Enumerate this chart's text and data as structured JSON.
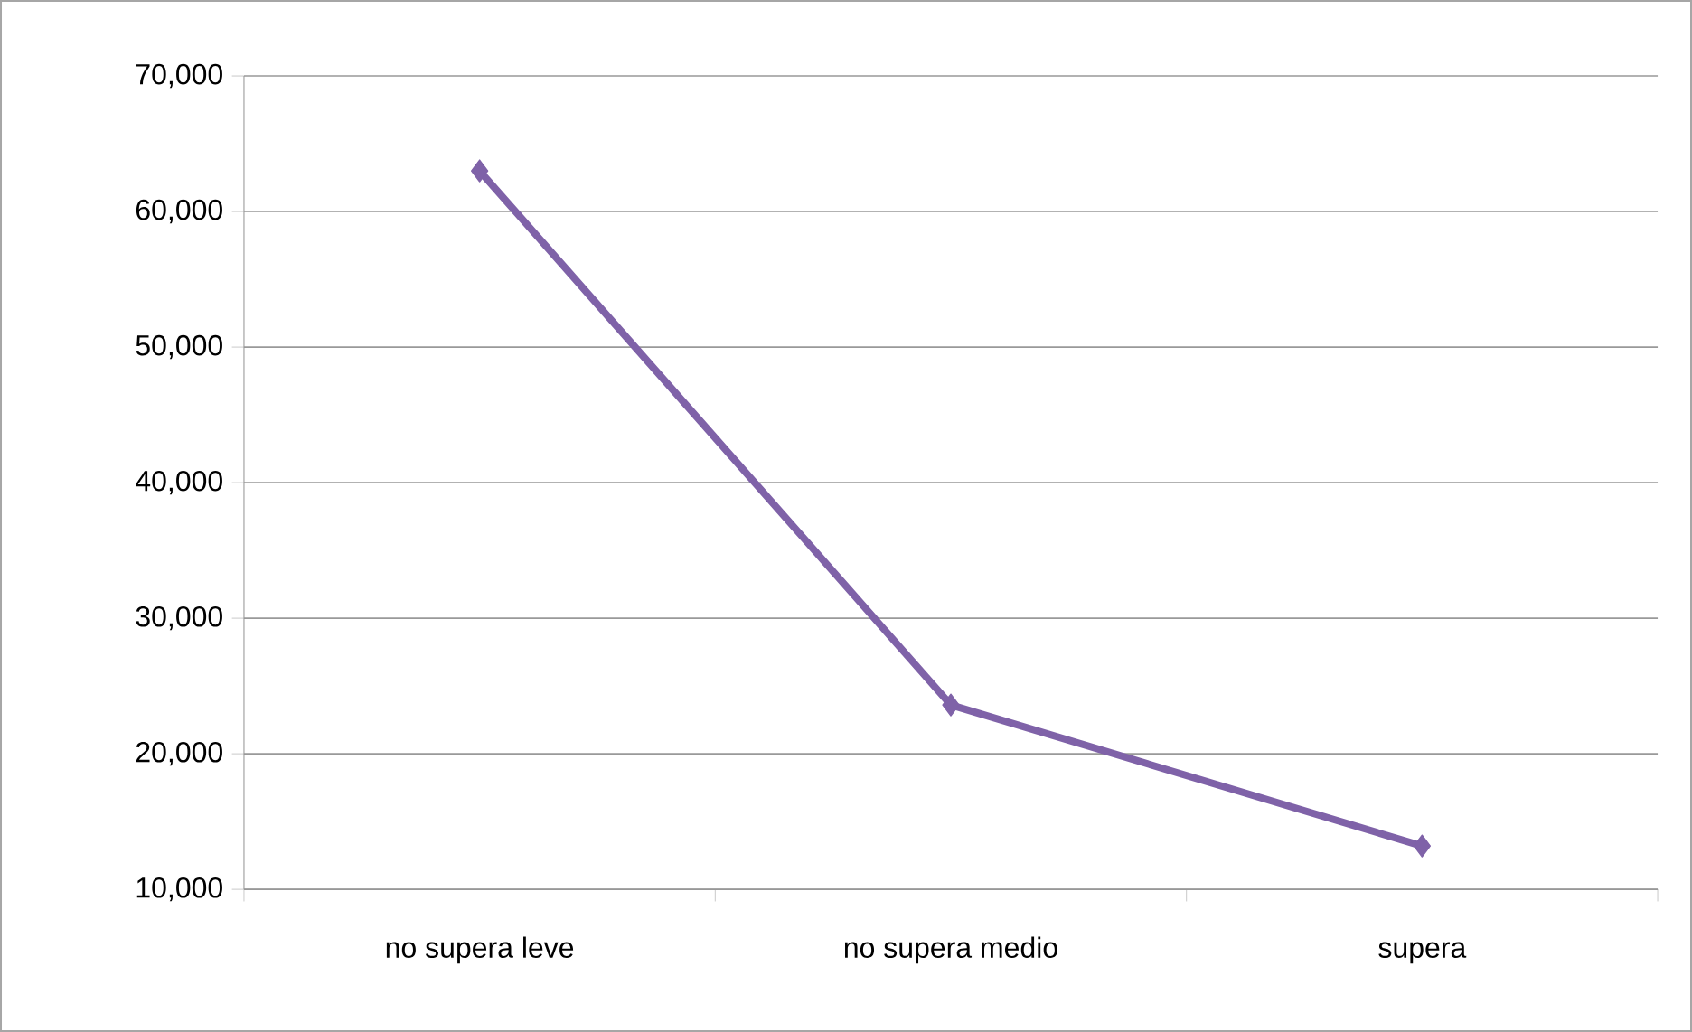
{
  "chart_data": {
    "type": "line",
    "categories": [
      "no supera leve",
      "no supera medio",
      "supera"
    ],
    "series": [
      {
        "color": "#7f62a8",
        "values": [
          63000,
          23600,
          13200
        ]
      }
    ],
    "ylim": [
      10000,
      70000
    ],
    "yticks": [
      {
        "value": 10000,
        "label": "10,000"
      },
      {
        "value": 20000,
        "label": "20,000"
      },
      {
        "value": 30000,
        "label": "30,000"
      },
      {
        "value": 40000,
        "label": "40,000"
      },
      {
        "value": 50000,
        "label": "50,000"
      },
      {
        "value": 60000,
        "label": "60,000"
      },
      {
        "value": 70000,
        "label": "70,000"
      }
    ],
    "grid": "y",
    "marker": "diamond",
    "line_style": "solid"
  }
}
